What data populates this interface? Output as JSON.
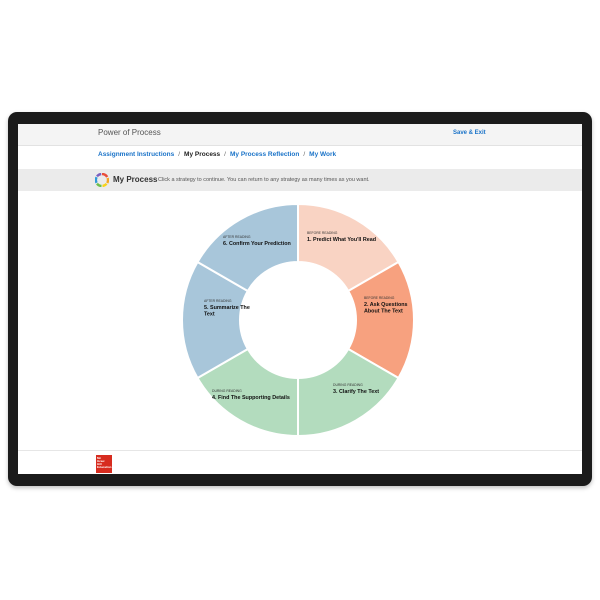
{
  "app": {
    "title": "Power of Process",
    "save_exit_label": "Save & Exit"
  },
  "breadcrumb": [
    {
      "label": "Assignment Instructions",
      "current": false
    },
    {
      "label": "My Process",
      "current": true
    },
    {
      "label": "My Process Reflection",
      "current": false
    },
    {
      "label": "My Work",
      "current": false
    }
  ],
  "breadcrumb_separator": "/",
  "section": {
    "title": "My Process",
    "instruction": "Click a strategy to continue. You can return to any strategy as many times as you want.",
    "logo_icon": "process-cycle-icon"
  },
  "wheel": {
    "segments": [
      {
        "phase": "BEFORE READING",
        "lines": [
          "1. Predict What You'll Read"
        ],
        "color": "#f9d3c3"
      },
      {
        "phase": "BEFORE READING",
        "lines": [
          "2. Ask Questions",
          "About The Text"
        ],
        "color": "#f7a17f"
      },
      {
        "phase": "DURING READING",
        "lines": [
          "3. Clarify The Text"
        ],
        "color": "#b3dcbe"
      },
      {
        "phase": "DURING READING",
        "lines": [
          "4. Find The Supporting Details"
        ],
        "color": "#b3dcbe"
      },
      {
        "phase": "AFTER READING",
        "lines": [
          "5. Summarize The",
          "Text"
        ],
        "color": "#a8c6da"
      },
      {
        "phase": "AFTER READING",
        "lines": [
          "6. Confirm Your Prediction"
        ],
        "color": "#a8c6da"
      }
    ]
  },
  "footer": {
    "brand_logo_icon": "publisher-logo-icon",
    "brand_logo_lines": [
      "Mc",
      "Graw",
      "Hill",
      "Education"
    ]
  }
}
